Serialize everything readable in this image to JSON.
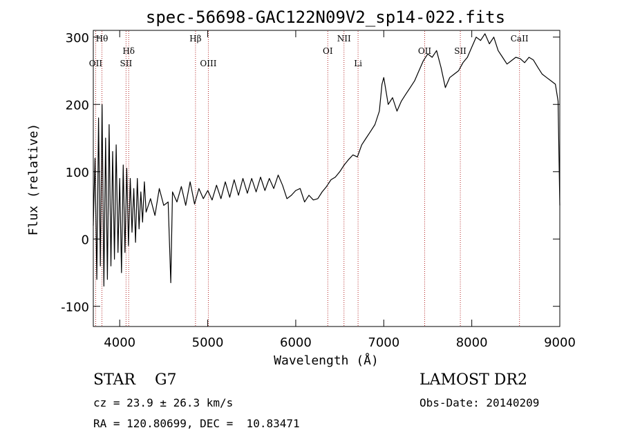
{
  "chart_data": {
    "type": "line",
    "title": "spec-56698-GAC122N09V2_sp14-022.fits",
    "xlabel": "Wavelength (Å)",
    "ylabel": "Flux (relative)",
    "xlim": [
      3700,
      9000
    ],
    "ylim": [
      -130,
      310
    ],
    "xticks": [
      4000,
      5000,
      6000,
      7000,
      8000,
      9000
    ],
    "yticks": [
      -100,
      0,
      100,
      200,
      300
    ],
    "grid": false,
    "line_color": "#000000",
    "marker_color": "#b22222",
    "lines": [
      {
        "label": "Hθ",
        "x": 3798,
        "row": 0
      },
      {
        "label": "OII",
        "x": 3727,
        "row": 2
      },
      {
        "label": "Hδ",
        "x": 4102,
        "row": 1
      },
      {
        "label": "SII",
        "x": 4072,
        "row": 2
      },
      {
        "label": "Hβ",
        "x": 4861,
        "row": 0
      },
      {
        "label": "OIII",
        "x": 5007,
        "row": 2
      },
      {
        "label": "OI",
        "x": 6364,
        "row": 1
      },
      {
        "label": "NII",
        "x": 6548,
        "row": 0
      },
      {
        "label": "Li",
        "x": 6708,
        "row": 2
      },
      {
        "label": "OII",
        "x": 7465,
        "row": 1
      },
      {
        "label": "SII",
        "x": 7870,
        "row": 1
      },
      {
        "label": "CaII",
        "x": 8542,
        "row": 0
      }
    ],
    "series": [
      {
        "x": [
          3700,
          3720,
          3740,
          3760,
          3780,
          3800,
          3820,
          3840,
          3860,
          3880,
          3900,
          3920,
          3940,
          3960,
          3980,
          4000,
          4020,
          4040,
          4060,
          4080,
          4100,
          4120,
          4140,
          4160,
          4180,
          4200,
          4220,
          4240,
          4260,
          4280,
          4300,
          4350,
          4400,
          4450,
          4500,
          4550,
          4580,
          4600,
          4650,
          4700,
          4750,
          4800,
          4850,
          4900,
          4950,
          5000,
          5050,
          5100,
          5150,
          5200,
          5250,
          5300,
          5350,
          5400,
          5450,
          5500,
          5550,
          5600,
          5650,
          5700,
          5750,
          5800,
          5850,
          5900,
          5950,
          6000,
          6050,
          6100,
          6150,
          6200,
          6250,
          6300,
          6350,
          6400,
          6450,
          6500,
          6550,
          6600,
          6650,
          6700,
          6750,
          6800,
          6850,
          6900,
          6950,
          6980,
          7000,
          7050,
          7100,
          7150,
          7200,
          7250,
          7300,
          7350,
          7400,
          7450,
          7500,
          7550,
          7600,
          7650,
          7700,
          7750,
          7800,
          7850,
          7900,
          7950,
          8000,
          8050,
          8100,
          8150,
          8200,
          8250,
          8300,
          8350,
          8400,
          8450,
          8500,
          8550,
          8600,
          8650,
          8700,
          8750,
          8800,
          8850,
          8900,
          8950,
          8980,
          9000
        ],
        "values": [
          20,
          120,
          -60,
          180,
          -40,
          200,
          -70,
          150,
          -60,
          170,
          -40,
          130,
          -30,
          140,
          -20,
          90,
          -50,
          110,
          -20,
          105,
          -10,
          90,
          10,
          75,
          -5,
          90,
          15,
          70,
          25,
          85,
          40,
          60,
          35,
          75,
          50,
          55,
          -65,
          70,
          55,
          78,
          50,
          85,
          52,
          75,
          60,
          72,
          58,
          80,
          60,
          85,
          62,
          88,
          65,
          90,
          68,
          90,
          70,
          92,
          72,
          90,
          75,
          95,
          80,
          60,
          65,
          72,
          75,
          55,
          65,
          58,
          60,
          70,
          78,
          88,
          92,
          100,
          110,
          118,
          125,
          122,
          140,
          150,
          160,
          170,
          190,
          230,
          240,
          200,
          210,
          190,
          205,
          215,
          225,
          235,
          250,
          265,
          275,
          270,
          280,
          255,
          225,
          240,
          245,
          250,
          262,
          270,
          285,
          300,
          295,
          305,
          290,
          300,
          280,
          270,
          260,
          265,
          270,
          268,
          262,
          270,
          266,
          255,
          245,
          240,
          235,
          230,
          205,
          50
        ]
      }
    ]
  },
  "info": {
    "class_line": "STAR    G7",
    "cz_line": "cz = 23.9 ± 26.3 km/s",
    "coord_line": "RA = 120.80699, DEC =  10.83471",
    "survey": "LAMOST DR2",
    "obs_date": "Obs-Date: 20140209"
  }
}
